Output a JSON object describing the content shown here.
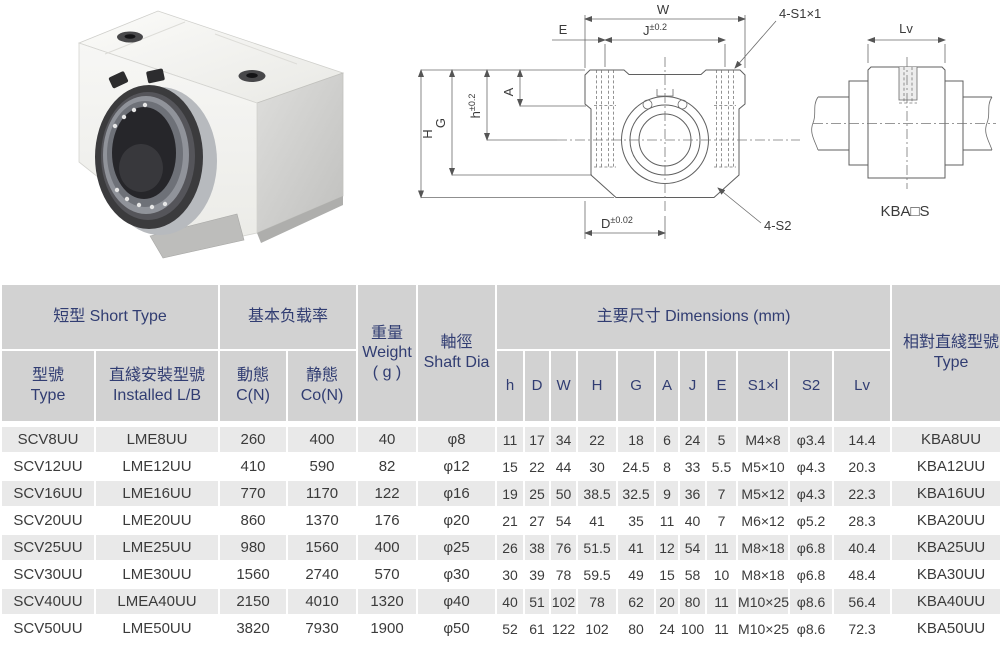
{
  "drawing": {
    "front": {
      "w": "W",
      "e": "E",
      "j": "J",
      "j_tol": "±0.2",
      "s1_callout": "4-S1×1",
      "h_small": "h",
      "h_tol": "±0.2",
      "a": "A",
      "g": "G",
      "h_big": "H",
      "d": "D",
      "d_tol": "±0.02",
      "s2_callout": "4-S2"
    },
    "side": {
      "lv": "Lv",
      "caption": "KBA□S"
    }
  },
  "table": {
    "header": {
      "group_short_type": "短型  Short Type",
      "group_load": "基本负载率",
      "weight_zh": "重量",
      "weight_en": "Weight",
      "weight_unit": "( g )",
      "shaft_zh": "軸徑",
      "shaft_en": "Shaft Dia",
      "group_dims": "主要尺寸  Dimensions (mm)",
      "rel_zh": "相對直綫型號",
      "rel_en": "Type",
      "type_zh": "型號",
      "type_en": "Type",
      "installed_zh": "直綫安裝型號",
      "installed_en": "Installed L/B",
      "dynamic_zh": "動態",
      "dynamic_en": "C(N)",
      "static_zh": "静態",
      "static_en": "Co(N)",
      "dim_cols": [
        "h",
        "D",
        "W",
        "H",
        "G",
        "A",
        "J",
        "E",
        "S1×l",
        "S2",
        "Lv"
      ]
    },
    "rows": [
      [
        "SCV8UU",
        "LME8UU",
        "260",
        "400",
        "40",
        "φ8",
        "11",
        "17",
        "34",
        "22",
        "18",
        "6",
        "24",
        "5",
        "M4×8",
        "φ3.4",
        "14.4",
        "KBA8UU"
      ],
      [
        "SCV12UU",
        "LME12UU",
        "410",
        "590",
        "82",
        "φ12",
        "15",
        "22",
        "44",
        "30",
        "24.5",
        "8",
        "33",
        "5.5",
        "M5×10",
        "φ4.3",
        "20.3",
        "KBA12UU"
      ],
      [
        "SCV16UU",
        "LME16UU",
        "770",
        "1170",
        "122",
        "φ16",
        "19",
        "25",
        "50",
        "38.5",
        "32.5",
        "9",
        "36",
        "7",
        "M5×12",
        "φ4.3",
        "22.3",
        "KBA16UU"
      ],
      [
        "SCV20UU",
        "LME20UU",
        "860",
        "1370",
        "176",
        "φ20",
        "21",
        "27",
        "54",
        "41",
        "35",
        "11",
        "40",
        "7",
        "M6×12",
        "φ5.2",
        "28.3",
        "KBA20UU"
      ],
      [
        "SCV25UU",
        "LME25UU",
        "980",
        "1560",
        "400",
        "φ25",
        "26",
        "38",
        "76",
        "51.5",
        "41",
        "12",
        "54",
        "11",
        "M8×18",
        "φ6.8",
        "40.4",
        "KBA25UU"
      ],
      [
        "SCV30UU",
        "LME30UU",
        "1560",
        "2740",
        "570",
        "φ30",
        "30",
        "39",
        "78",
        "59.5",
        "49",
        "15",
        "58",
        "10",
        "M8×18",
        "φ6.8",
        "48.4",
        "KBA30UU"
      ],
      [
        "SCV40UU",
        "LMEA40UU",
        "2150",
        "4010",
        "1320",
        "φ40",
        "40",
        "51",
        "102",
        "78",
        "62",
        "20",
        "80",
        "11",
        "M10×25",
        "φ8.6",
        "56.4",
        "KBA40UU"
      ],
      [
        "SCV50UU",
        "LME50UU",
        "3820",
        "7930",
        "1900",
        "φ50",
        "52",
        "61",
        "122",
        "102",
        "80",
        "24",
        "100",
        "11",
        "M10×25",
        "φ8.6",
        "72.3",
        "KBA50UU"
      ]
    ]
  },
  "colors": {
    "header_bg": "#d2d2d2",
    "header_text": "#313d72",
    "row_alt": "#e9e9e9",
    "line": "#5f5f5f"
  }
}
